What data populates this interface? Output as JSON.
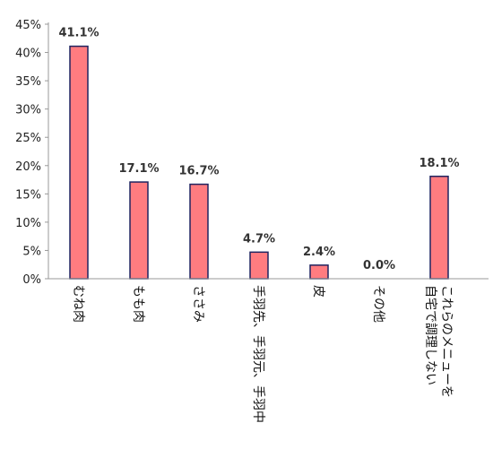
{
  "chart_data": {
    "type": "bar",
    "title": "",
    "xlabel": "",
    "ylabel": "",
    "ylim": [
      0,
      45
    ],
    "y_ticks": [
      "0%",
      "5%",
      "10%",
      "15%",
      "20%",
      "25%",
      "30%",
      "35%",
      "40%",
      "45%"
    ],
    "grid": false,
    "legend": "none",
    "categories": [
      "むね肉",
      "もも肉",
      "ささみ",
      "手羽先、手羽元、手羽中",
      "皮",
      "その他",
      "これらのメニューを自宅で調理しない"
    ],
    "values": [
      41.1,
      17.1,
      16.7,
      4.7,
      2.4,
      0.0,
      18.1
    ],
    "data_labels": [
      "41.1%",
      "17.1%",
      "16.7%",
      "4.7%",
      "2.4%",
      "0.0%",
      "18.1%"
    ],
    "colors": {
      "bar_fill": "#ff7c80",
      "bar_stroke": "#1f2460",
      "axis": "#999999"
    }
  }
}
